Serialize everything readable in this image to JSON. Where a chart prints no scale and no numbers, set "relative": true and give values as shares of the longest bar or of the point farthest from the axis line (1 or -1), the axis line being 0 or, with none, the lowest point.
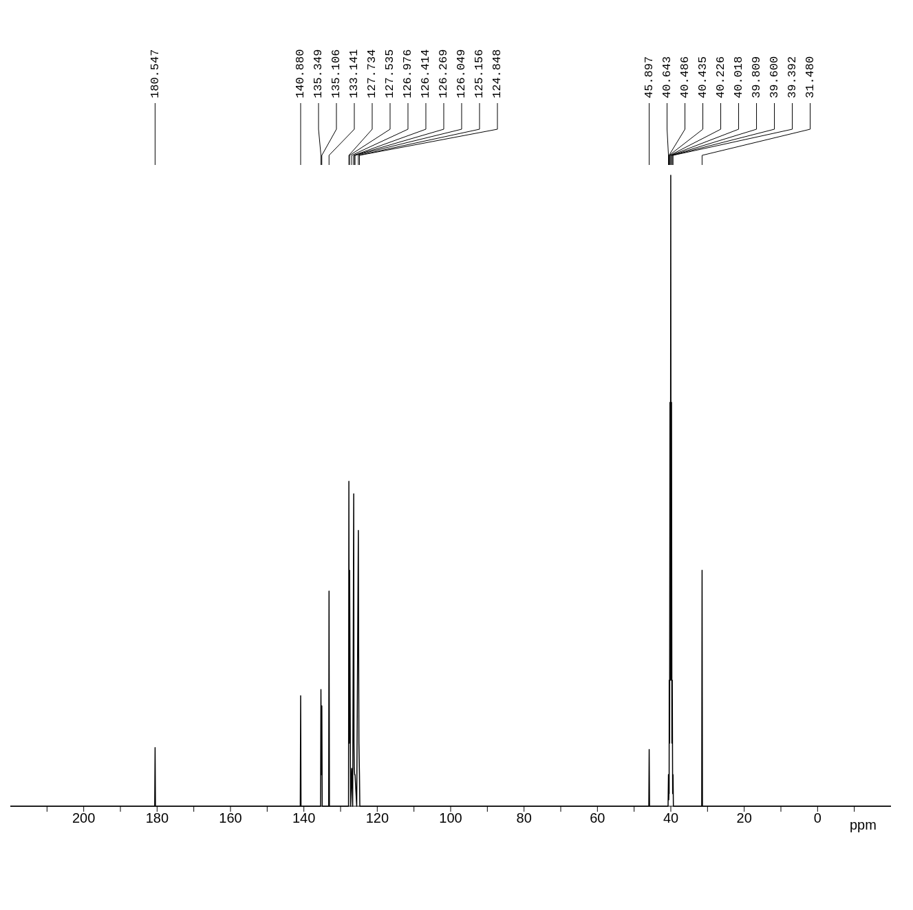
{
  "chart_data": {
    "type": "line",
    "relative": true,
    "xlabel": "ppm",
    "xlim": [
      220,
      -20
    ],
    "xticks": [
      {
        "value": 210,
        "label": null
      },
      200,
      {
        "value": 190,
        "label": null
      },
      180,
      {
        "value": 170,
        "label": null
      },
      160,
      {
        "value": 150,
        "label": null
      },
      140,
      {
        "value": 130,
        "label": null
      },
      120,
      {
        "value": 110,
        "label": null
      },
      100,
      {
        "value": 90,
        "label": null
      },
      80,
      {
        "value": 70,
        "label": null
      },
      60,
      {
        "value": 50,
        "label": null
      },
      40,
      {
        "value": 30,
        "label": null
      },
      20,
      {
        "value": 10,
        "label": null
      },
      0,
      {
        "value": -10,
        "label": null
      }
    ],
    "series": [
      {
        "color": "#000000",
        "x": [
          220,
          180.65,
          180.547,
          180.45,
          140.98,
          140.88,
          140.78,
          135.45,
          135.349,
          135.23,
          135.106,
          135.0,
          133.24,
          133.141,
          133.04,
          127.83,
          127.734,
          127.635,
          127.535,
          127.26,
          126.976,
          126.7,
          126.414,
          126.34,
          126.269,
          126.16,
          126.049,
          125.6,
          125.156,
          125.0,
          124.848,
          124.75,
          46.0,
          45.897,
          45.8,
          40.75,
          40.643,
          40.56,
          40.486,
          40.46,
          40.435,
          40.33,
          40.226,
          40.12,
          40.018,
          39.91,
          39.809,
          39.7,
          39.6,
          39.5,
          39.392,
          39.3,
          31.58,
          31.48,
          31.38,
          -20
        ],
        "values": [
          0,
          0,
          0.093,
          0,
          0,
          0.175,
          0,
          0,
          0.185,
          0.05,
          0.159,
          0,
          0,
          0.341,
          0,
          0,
          0.515,
          0.1,
          0.374,
          0,
          0.06,
          0,
          0.495,
          0.1,
          0.06,
          0.05,
          0.05,
          0,
          0.437,
          0.1,
          0.05,
          0,
          0,
          0.09,
          0,
          0,
          0.05,
          0.01,
          0.03,
          0.02,
          0.2,
          0.1,
          0.64,
          0.2,
          1,
          0.2,
          0.64,
          0.1,
          0.2,
          0.02,
          0.05,
          0,
          0,
          0.374,
          0,
          0
        ]
      }
    ],
    "annotations": [
      {
        "text": "180.547",
        "x": 180.547
      },
      {
        "text": "140.880",
        "x": 140.88
      },
      {
        "text": "135.349",
        "x": 135.349
      },
      {
        "text": "135.106",
        "x": 135.106
      },
      {
        "text": "133.141",
        "x": 133.141
      },
      {
        "text": "127.734",
        "x": 127.734
      },
      {
        "text": "127.535",
        "x": 127.535
      },
      {
        "text": "126.976",
        "x": 126.976
      },
      {
        "text": "126.414",
        "x": 126.414
      },
      {
        "text": "126.269",
        "x": 126.269
      },
      {
        "text": "126.049",
        "x": 126.049
      },
      {
        "text": "125.156",
        "x": 125.156
      },
      {
        "text": "124.848",
        "x": 124.848
      },
      {
        "text": "45.897",
        "x": 45.897
      },
      {
        "text": "40.643",
        "x": 40.643
      },
      {
        "text": "40.486",
        "x": 40.486
      },
      {
        "text": "40.435",
        "x": 40.435
      },
      {
        "text": "40.226",
        "x": 40.226
      },
      {
        "text": "40.018",
        "x": 40.018
      },
      {
        "text": "39.809",
        "x": 39.809
      },
      {
        "text": "39.600",
        "x": 39.6
      },
      {
        "text": "39.392",
        "x": 39.392
      },
      {
        "text": "31.480",
        "x": 31.48
      }
    ]
  }
}
